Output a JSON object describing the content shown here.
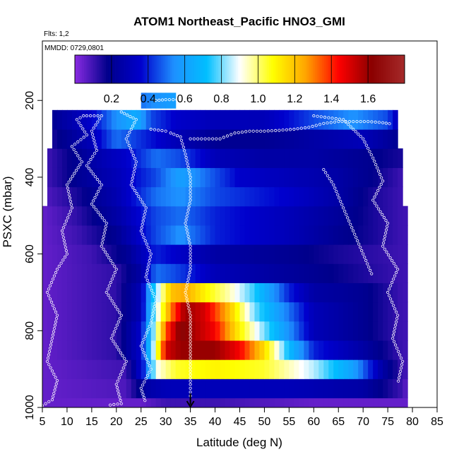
{
  "chart_data": {
    "type": "heatmap",
    "title": "ATOM1 Northeast_Pacific HNO3_GMI",
    "flights_note": "Flts: 1,2",
    "date_note": "MMDD: 0729,0801",
    "xlabel": "Latitude (deg N)",
    "ylabel": "PSXC (mbar)",
    "xlim": [
      5,
      85
    ],
    "ylim": [
      1000,
      45
    ],
    "x_ticks": [
      5,
      10,
      15,
      20,
      25,
      30,
      35,
      40,
      45,
      50,
      55,
      60,
      65,
      70,
      75,
      80,
      85
    ],
    "y_ticks": [
      200,
      400,
      600,
      800,
      1000
    ],
    "colorbar": {
      "range": [
        0,
        1.8
      ],
      "ticks": [
        0.2,
        0.4,
        0.6,
        0.8,
        1.0,
        1.2,
        1.4,
        1.6
      ],
      "tick_labels": [
        "0.2",
        "0.4",
        "0.6",
        "0.8",
        "1.0",
        "1.2",
        "1.4",
        "1.6"
      ],
      "colors": [
        "#8a2be2",
        "#00008b",
        "#0000cd",
        "#1e90ff",
        "#00bfff",
        "#ffffff",
        "#ffff00",
        "#ffa500",
        "#ff0000",
        "#8b0000",
        "#a52a2a"
      ]
    },
    "arrow_latitude": 35,
    "pressure_levels": [
      1000,
      950,
      900,
      850,
      800,
      750,
      700,
      650,
      600,
      550,
      500,
      450,
      400,
      350,
      300,
      250,
      200
    ],
    "lat_start": 5,
    "lat_step": 1,
    "lat_extent": [
      [
        5,
        79
      ],
      [
        5,
        79
      ],
      [
        5,
        79
      ],
      [
        5,
        79
      ],
      [
        5,
        79
      ],
      [
        5,
        79
      ],
      [
        5,
        79
      ],
      [
        5,
        79
      ],
      [
        5,
        79
      ],
      [
        5,
        79
      ],
      [
        5,
        79
      ],
      [
        6,
        78
      ],
      [
        6,
        78
      ],
      [
        6,
        78
      ],
      [
        7,
        77
      ],
      [
        7,
        77
      ],
      [
        25,
        32
      ]
    ],
    "profiles": [
      [
        [
          5,
          0.05
        ],
        [
          25,
          0.05
        ],
        [
          30,
          0.1
        ],
        [
          40,
          0.1
        ],
        [
          60,
          0.05
        ],
        [
          79,
          0.05
        ]
      ],
      [
        [
          5,
          0.05
        ],
        [
          22,
          0.08
        ],
        [
          26,
          0.25
        ],
        [
          30,
          0.3
        ],
        [
          40,
          0.3
        ],
        [
          55,
          0.3
        ],
        [
          70,
          0.25
        ],
        [
          78,
          0.1
        ],
        [
          79,
          0.05
        ]
      ],
      [
        [
          5,
          0.05
        ],
        [
          22,
          0.1
        ],
        [
          26,
          0.45
        ],
        [
          28,
          0.9
        ],
        [
          32,
          1.05
        ],
        [
          40,
          1.1
        ],
        [
          50,
          1.05
        ],
        [
          60,
          0.85
        ],
        [
          68,
          0.6
        ],
        [
          74,
          0.25
        ],
        [
          78,
          0.1
        ]
      ],
      [
        [
          5,
          0.05
        ],
        [
          20,
          0.12
        ],
        [
          25,
          0.35
        ],
        [
          28,
          0.95
        ],
        [
          30,
          1.5
        ],
        [
          33,
          1.6
        ],
        [
          40,
          1.6
        ],
        [
          45,
          1.45
        ],
        [
          50,
          1.15
        ],
        [
          55,
          0.7
        ],
        [
          60,
          0.4
        ],
        [
          70,
          0.25
        ],
        [
          78,
          0.1
        ]
      ],
      [
        [
          5,
          0.05
        ],
        [
          20,
          0.12
        ],
        [
          25,
          0.35
        ],
        [
          28,
          0.9
        ],
        [
          30,
          1.35
        ],
        [
          33,
          1.65
        ],
        [
          40,
          1.45
        ],
        [
          45,
          1.1
        ],
        [
          50,
          0.8
        ],
        [
          55,
          0.55
        ],
        [
          60,
          0.3
        ],
        [
          70,
          0.2
        ],
        [
          78,
          0.1
        ]
      ],
      [
        [
          5,
          0.05
        ],
        [
          20,
          0.12
        ],
        [
          25,
          0.3
        ],
        [
          28,
          0.85
        ],
        [
          31,
          1.3
        ],
        [
          34,
          1.6
        ],
        [
          38,
          1.5
        ],
        [
          43,
          1.2
        ],
        [
          48,
          0.8
        ],
        [
          55,
          0.5
        ],
        [
          60,
          0.3
        ],
        [
          70,
          0.2
        ],
        [
          78,
          0.1
        ]
      ],
      [
        [
          5,
          0.05
        ],
        [
          20,
          0.12
        ],
        [
          25,
          0.3
        ],
        [
          28,
          0.8
        ],
        [
          31,
          1.2
        ],
        [
          34,
          1.25
        ],
        [
          38,
          1.1
        ],
        [
          43,
          0.95
        ],
        [
          48,
          0.75
        ],
        [
          55,
          0.4
        ],
        [
          60,
          0.25
        ],
        [
          70,
          0.2
        ],
        [
          78,
          0.1
        ]
      ],
      [
        [
          5,
          0.05
        ],
        [
          20,
          0.12
        ],
        [
          25,
          0.25
        ],
        [
          28,
          0.5
        ],
        [
          32,
          0.45
        ],
        [
          40,
          0.3
        ],
        [
          50,
          0.25
        ],
        [
          60,
          0.2
        ],
        [
          78,
          0.1
        ]
      ],
      [
        [
          5,
          0.05
        ],
        [
          15,
          0.1
        ],
        [
          22,
          0.2
        ],
        [
          28,
          0.4
        ],
        [
          32,
          0.35
        ],
        [
          40,
          0.25
        ],
        [
          55,
          0.2
        ],
        [
          65,
          0.15
        ],
        [
          78,
          0.1
        ]
      ],
      [
        [
          5,
          0.05
        ],
        [
          12,
          0.1
        ],
        [
          20,
          0.2
        ],
        [
          28,
          0.45
        ],
        [
          33,
          0.55
        ],
        [
          40,
          0.4
        ],
        [
          55,
          0.3
        ],
        [
          65,
          0.2
        ],
        [
          72,
          0.15
        ],
        [
          78,
          0.1
        ]
      ],
      [
        [
          5,
          0.05
        ],
        [
          12,
          0.12
        ],
        [
          20,
          0.25
        ],
        [
          28,
          0.45
        ],
        [
          33,
          0.5
        ],
        [
          40,
          0.4
        ],
        [
          55,
          0.3
        ],
        [
          65,
          0.22
        ],
        [
          72,
          0.15
        ],
        [
          78,
          0.1
        ]
      ],
      [
        [
          6,
          0.08
        ],
        [
          12,
          0.15
        ],
        [
          20,
          0.28
        ],
        [
          28,
          0.5
        ],
        [
          33,
          0.55
        ],
        [
          40,
          0.45
        ],
        [
          55,
          0.35
        ],
        [
          65,
          0.25
        ],
        [
          72,
          0.15
        ],
        [
          78,
          0.1
        ]
      ],
      [
        [
          6,
          0.1
        ],
        [
          12,
          0.2
        ],
        [
          20,
          0.3
        ],
        [
          28,
          0.45
        ],
        [
          33,
          0.6
        ],
        [
          38,
          0.5
        ],
        [
          45,
          0.35
        ],
        [
          55,
          0.3
        ],
        [
          65,
          0.25
        ],
        [
          72,
          0.18
        ],
        [
          78,
          0.1
        ]
      ],
      [
        [
          6,
          0.1
        ],
        [
          12,
          0.2
        ],
        [
          18,
          0.3
        ],
        [
          22,
          0.35
        ],
        [
          28,
          0.5
        ],
        [
          33,
          0.45
        ],
        [
          40,
          0.3
        ],
        [
          50,
          0.25
        ],
        [
          60,
          0.25
        ],
        [
          70,
          0.2
        ],
        [
          78,
          0.15
        ]
      ],
      [
        [
          7,
          0.15
        ],
        [
          15,
          0.3
        ],
        [
          20,
          0.5
        ],
        [
          26,
          0.4
        ],
        [
          32,
          0.3
        ],
        [
          40,
          0.2
        ],
        [
          50,
          0.2
        ],
        [
          60,
          0.25
        ],
        [
          70,
          0.3
        ],
        [
          77,
          0.2
        ]
      ],
      [
        [
          7,
          0.2
        ],
        [
          15,
          0.35
        ],
        [
          20,
          0.55
        ],
        [
          24,
          0.65
        ],
        [
          27,
          0.45
        ],
        [
          32,
          0.35
        ],
        [
          40,
          0.3
        ],
        [
          50,
          0.3
        ],
        [
          60,
          0.45
        ],
        [
          68,
          0.55
        ],
        [
          75,
          0.45
        ],
        [
          77,
          0.3
        ]
      ],
      [
        [
          25,
          0.5
        ],
        [
          28,
          0.55
        ],
        [
          32,
          0.6
        ]
      ]
    ],
    "flight_tracks": [
      [
        [
          5,
          995
        ],
        [
          7,
          980
        ],
        [
          8,
          930
        ],
        [
          6,
          880
        ],
        [
          7,
          820
        ],
        [
          8,
          760
        ],
        [
          6,
          700
        ],
        [
          8,
          640
        ],
        [
          10,
          600
        ],
        [
          9,
          540
        ],
        [
          11,
          480
        ],
        [
          10,
          420
        ],
        [
          13,
          360
        ],
        [
          11,
          320
        ],
        [
          14,
          290
        ],
        [
          12,
          250
        ],
        [
          14,
          235
        ]
      ],
      [
        [
          14,
          240
        ],
        [
          17,
          240
        ],
        [
          15,
          280
        ],
        [
          16,
          330
        ],
        [
          14,
          370
        ],
        [
          17,
          420
        ],
        [
          15,
          470
        ],
        [
          18,
          520
        ],
        [
          17,
          580
        ],
        [
          20,
          640
        ],
        [
          18,
          700
        ],
        [
          21,
          760
        ],
        [
          19,
          820
        ],
        [
          22,
          880
        ],
        [
          20,
          940
        ],
        [
          21,
          990
        ],
        [
          18,
          995
        ]
      ],
      [
        [
          21,
          230
        ],
        [
          24,
          250
        ],
        [
          22,
          300
        ],
        [
          24,
          360
        ],
        [
          23,
          420
        ],
        [
          26,
          480
        ],
        [
          25,
          540
        ],
        [
          27,
          600
        ],
        [
          26,
          660
        ],
        [
          28,
          720
        ],
        [
          27,
          780
        ],
        [
          25,
          840
        ],
        [
          27,
          900
        ],
        [
          25,
          950
        ],
        [
          26,
          990
        ]
      ],
      [
        [
          27,
          275
        ],
        [
          30,
          280
        ],
        [
          31,
          285
        ],
        [
          33,
          295
        ],
        [
          34,
          340
        ],
        [
          35,
          400
        ],
        [
          35,
          460
        ],
        [
          34,
          520
        ],
        [
          35,
          580
        ],
        [
          35,
          640
        ],
        [
          34,
          700
        ],
        [
          35,
          760
        ],
        [
          35,
          820
        ],
        [
          35,
          880
        ],
        [
          35,
          940
        ],
        [
          35,
          980
        ]
      ],
      [
        [
          35,
          300
        ],
        [
          38,
          300
        ],
        [
          41,
          300
        ],
        [
          44,
          285
        ],
        [
          47,
          280
        ],
        [
          50,
          280
        ],
        [
          53,
          278
        ],
        [
          56,
          275
        ],
        [
          59,
          270
        ],
        [
          62,
          260
        ],
        [
          65,
          255
        ],
        [
          68,
          255
        ],
        [
          71,
          255
        ],
        [
          74,
          258
        ],
        [
          76,
          262
        ]
      ],
      [
        [
          60,
          240
        ],
        [
          63,
          245
        ],
        [
          66,
          250
        ],
        [
          70,
          300
        ],
        [
          72,
          350
        ],
        [
          74,
          410
        ],
        [
          72,
          460
        ],
        [
          75,
          520
        ],
        [
          74,
          580
        ],
        [
          77,
          640
        ],
        [
          75,
          700
        ],
        [
          77,
          760
        ],
        [
          76,
          820
        ],
        [
          78,
          880
        ],
        [
          77,
          940
        ]
      ],
      [
        [
          28,
          200
        ],
        [
          30,
          198
        ],
        [
          33,
          198
        ],
        [
          35,
          200
        ]
      ],
      [
        [
          62,
          380
        ],
        [
          64,
          420
        ],
        [
          66,
          480
        ],
        [
          68,
          540
        ],
        [
          70,
          600
        ],
        [
          72,
          660
        ]
      ]
    ]
  }
}
